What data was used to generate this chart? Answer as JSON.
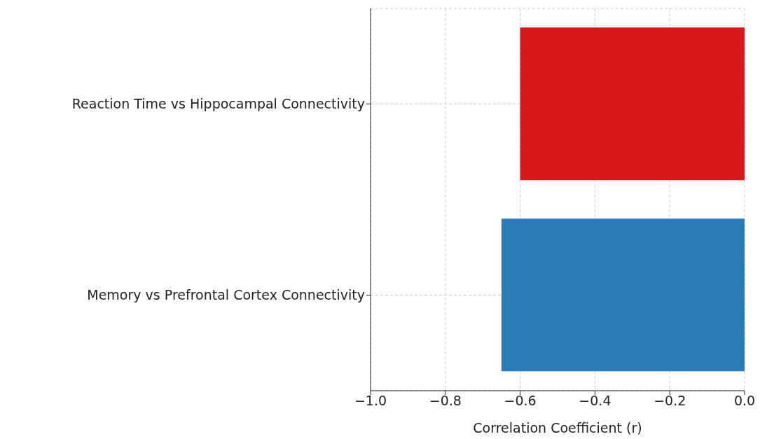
{
  "chart_data": {
    "type": "bar",
    "orientation": "horizontal",
    "xlabel": "Correlation Coefficient (r)",
    "categories": [
      "Reaction Time vs Hippocampal Connectivity",
      "Memory vs Prefrontal Cortex Connectivity"
    ],
    "values": [
      -0.6,
      -0.65
    ],
    "colors": [
      "#d7191c",
      "#2c7bb6"
    ],
    "xlim": [
      -1.0,
      0.0
    ],
    "xticks": [
      {
        "value": -1.0,
        "label": "−1.0"
      },
      {
        "value": -0.8,
        "label": "−0.8"
      },
      {
        "value": -0.6,
        "label": "−0.6"
      },
      {
        "value": -0.4,
        "label": "−0.4"
      },
      {
        "value": -0.2,
        "label": "−0.2"
      },
      {
        "value": 0.0,
        "label": "0.0"
      }
    ],
    "grid": true
  }
}
